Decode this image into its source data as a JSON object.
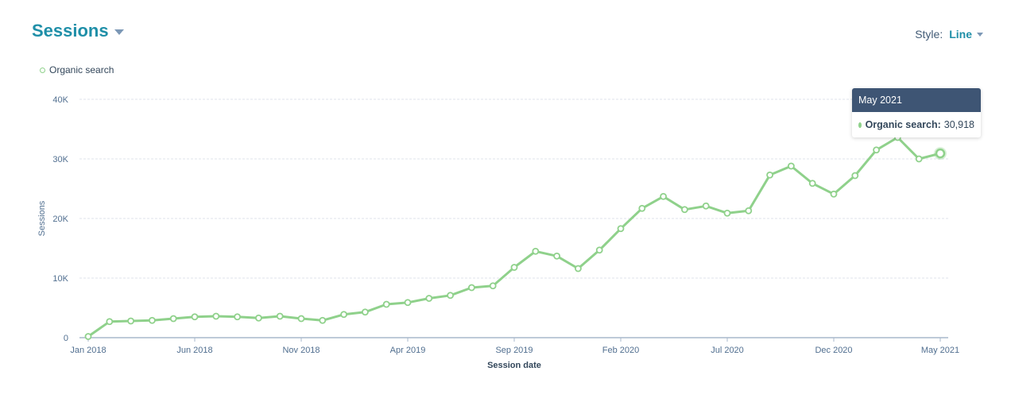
{
  "header": {
    "title": "Sessions",
    "style_label": "Style:",
    "style_value": "Line"
  },
  "legend": {
    "items": [
      {
        "label": "Organic search",
        "color": "#8fd18b"
      }
    ]
  },
  "tooltip": {
    "title": "May 2021",
    "series": "Organic search:",
    "value": "30,918"
  },
  "colors": {
    "line": "#8fd18b",
    "title": "#1f8fa8",
    "grid": "#dfe3eb",
    "axis": "#a9b8cc",
    "text": "#33475b",
    "tooltip_header": "#3e5574"
  },
  "chart_data": {
    "type": "line",
    "title": "Sessions",
    "xlabel": "Session date",
    "ylabel": "Sessions",
    "ylim": [
      0,
      40000
    ],
    "yticks": [
      0,
      10000,
      20000,
      30000,
      40000
    ],
    "ytick_labels": [
      "0",
      "10K",
      "20K",
      "30K",
      "40K"
    ],
    "xtick_labels": [
      "Jan 2018",
      "Jun 2018",
      "Nov 2018",
      "Apr 2019",
      "Sep 2019",
      "Feb 2020",
      "Jul 2020",
      "Dec 2020",
      "May 2021"
    ],
    "grid": true,
    "legend_position": "top-left",
    "categories": [
      "Jan 2018",
      "Feb 2018",
      "Mar 2018",
      "Apr 2018",
      "May 2018",
      "Jun 2018",
      "Jul 2018",
      "Aug 2018",
      "Sep 2018",
      "Oct 2018",
      "Nov 2018",
      "Dec 2018",
      "Jan 2019",
      "Feb 2019",
      "Mar 2019",
      "Apr 2019",
      "May 2019",
      "Jun 2019",
      "Jul 2019",
      "Aug 2019",
      "Sep 2019",
      "Oct 2019",
      "Nov 2019",
      "Dec 2019",
      "Jan 2020",
      "Feb 2020",
      "Mar 2020",
      "Apr 2020",
      "May 2020",
      "Jun 2020",
      "Jul 2020",
      "Aug 2020",
      "Sep 2020",
      "Oct 2020",
      "Nov 2020",
      "Dec 2020",
      "Jan 2021",
      "Feb 2021",
      "Mar 2021",
      "Apr 2021",
      "May 2021"
    ],
    "series": [
      {
        "name": "Organic search",
        "values": [
          200,
          2700,
          2800,
          2900,
          3200,
          3500,
          3600,
          3500,
          3300,
          3600,
          3200,
          2900,
          3900,
          4300,
          5600,
          5900,
          6600,
          7100,
          8400,
          8700,
          11800,
          14500,
          13700,
          11600,
          14700,
          18300,
          21700,
          23700,
          21500,
          22100,
          20900,
          21300,
          27300,
          28800,
          25900,
          24100,
          27200,
          31500,
          33600,
          30000,
          30918
        ]
      }
    ]
  }
}
